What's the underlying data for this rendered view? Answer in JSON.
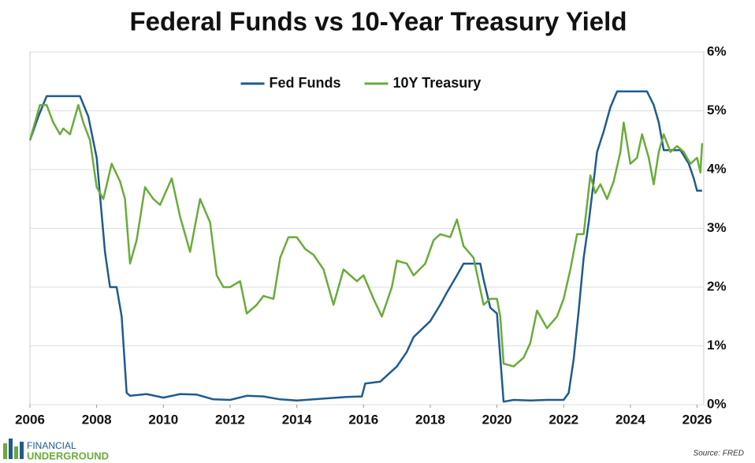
{
  "chart_data": {
    "type": "line",
    "title": "Federal Funds vs 10-Year Treasury Yield",
    "xlim": [
      2006,
      2026.2
    ],
    "xticks": [
      2006,
      2008,
      2010,
      2012,
      2014,
      2016,
      2018,
      2020,
      2022,
      2024,
      2026
    ],
    "ylim": [
      0,
      6
    ],
    "yticks": [
      {
        "value": 0,
        "label": "0%"
      },
      {
        "value": 1,
        "label": "1%"
      },
      {
        "value": 2,
        "label": "2%"
      },
      {
        "value": 3,
        "label": "3%"
      },
      {
        "value": 4,
        "label": "4%"
      },
      {
        "value": 5,
        "label": "5%"
      },
      {
        "value": 6,
        "label": "6%"
      }
    ],
    "y_axis_side": "right",
    "grid": true,
    "legend": "top-center",
    "series": [
      {
        "name": "Fed Funds",
        "color": "#1f5b8e",
        "x": [
          2006.0,
          2006.25,
          2006.5,
          2007.0,
          2007.5,
          2007.75,
          2008.0,
          2008.25,
          2008.4,
          2008.6,
          2008.75,
          2008.9,
          2009.0,
          2009.5,
          2010.0,
          2010.5,
          2011.0,
          2011.5,
          2012.0,
          2012.5,
          2013.0,
          2013.5,
          2014.0,
          2014.5,
          2015.0,
          2015.5,
          2015.95,
          2016.05,
          2016.5,
          2017.0,
          2017.3,
          2017.5,
          2018.0,
          2018.3,
          2018.5,
          2018.8,
          2019.0,
          2019.5,
          2019.6,
          2019.8,
          2020.0,
          2020.2,
          2020.5,
          2021.0,
          2021.5,
          2022.0,
          2022.15,
          2022.3,
          2022.45,
          2022.6,
          2022.75,
          2022.9,
          2023.0,
          2023.2,
          2023.4,
          2023.6,
          2024.0,
          2024.5,
          2024.7,
          2024.85,
          2025.0,
          2025.5,
          2025.75,
          2025.9,
          2026.0,
          2026.15
        ],
        "values": [
          4.5,
          4.9,
          5.25,
          5.25,
          5.25,
          4.9,
          4.2,
          2.6,
          2.0,
          2.0,
          1.5,
          0.2,
          0.15,
          0.18,
          0.12,
          0.18,
          0.17,
          0.09,
          0.08,
          0.15,
          0.14,
          0.09,
          0.07,
          0.09,
          0.11,
          0.13,
          0.14,
          0.36,
          0.39,
          0.65,
          0.9,
          1.15,
          1.42,
          1.7,
          1.91,
          2.2,
          2.4,
          2.4,
          2.13,
          1.65,
          1.55,
          0.05,
          0.08,
          0.07,
          0.08,
          0.08,
          0.2,
          0.77,
          1.6,
          2.5,
          3.1,
          3.8,
          4.3,
          4.65,
          5.06,
          5.33,
          5.33,
          5.33,
          5.1,
          4.8,
          4.33,
          4.33,
          4.1,
          3.85,
          3.64,
          3.64
        ]
      },
      {
        "name": "10Y Treasury",
        "color": "#6aab3a",
        "x": [
          2006.0,
          2006.1,
          2006.3,
          2006.5,
          2006.7,
          2006.9,
          2007.0,
          2007.2,
          2007.45,
          2007.6,
          2007.8,
          2008.0,
          2008.2,
          2008.45,
          2008.7,
          2008.85,
          2009.0,
          2009.2,
          2009.45,
          2009.7,
          2009.9,
          2010.25,
          2010.5,
          2010.8,
          2011.1,
          2011.4,
          2011.6,
          2011.8,
          2012.0,
          2012.3,
          2012.5,
          2012.8,
          2013.0,
          2013.3,
          2013.5,
          2013.75,
          2014.0,
          2014.25,
          2014.5,
          2014.8,
          2015.1,
          2015.4,
          2015.8,
          2016.0,
          2016.3,
          2016.55,
          2016.85,
          2017.0,
          2017.3,
          2017.5,
          2017.85,
          2018.1,
          2018.3,
          2018.6,
          2018.8,
          2019.0,
          2019.3,
          2019.6,
          2019.8,
          2020.0,
          2020.1,
          2020.2,
          2020.5,
          2020.8,
          2021.0,
          2021.2,
          2021.5,
          2021.8,
          2022.0,
          2022.2,
          2022.4,
          2022.6,
          2022.8,
          2022.95,
          2023.1,
          2023.3,
          2023.5,
          2023.7,
          2023.8,
          2024.0,
          2024.2,
          2024.35,
          2024.55,
          2024.7,
          2024.85,
          2025.0,
          2025.2,
          2025.4,
          2025.6,
          2025.8,
          2026.0,
          2026.1,
          2026.15
        ],
        "values": [
          4.5,
          4.7,
          5.1,
          5.1,
          4.8,
          4.6,
          4.7,
          4.6,
          5.1,
          4.8,
          4.5,
          3.7,
          3.5,
          4.1,
          3.8,
          3.5,
          2.4,
          2.8,
          3.7,
          3.5,
          3.4,
          3.85,
          3.2,
          2.6,
          3.5,
          3.1,
          2.2,
          2.0,
          2.0,
          2.1,
          1.55,
          1.7,
          1.85,
          1.8,
          2.5,
          2.85,
          2.85,
          2.65,
          2.55,
          2.3,
          1.7,
          2.3,
          2.1,
          2.2,
          1.8,
          1.5,
          2.0,
          2.45,
          2.4,
          2.2,
          2.4,
          2.8,
          2.9,
          2.85,
          3.15,
          2.7,
          2.5,
          1.7,
          1.8,
          1.8,
          1.5,
          0.7,
          0.65,
          0.8,
          1.05,
          1.6,
          1.3,
          1.5,
          1.8,
          2.3,
          2.9,
          2.9,
          3.9,
          3.6,
          3.75,
          3.5,
          3.8,
          4.3,
          4.8,
          4.1,
          4.2,
          4.6,
          4.2,
          3.75,
          4.3,
          4.6,
          4.3,
          4.4,
          4.3,
          4.1,
          4.2,
          3.95,
          4.45
        ]
      }
    ]
  },
  "footer": {
    "logo_top": "FINANCIAL",
    "logo_bottom": "UNDERGROUND",
    "source": "Source: FRED"
  }
}
